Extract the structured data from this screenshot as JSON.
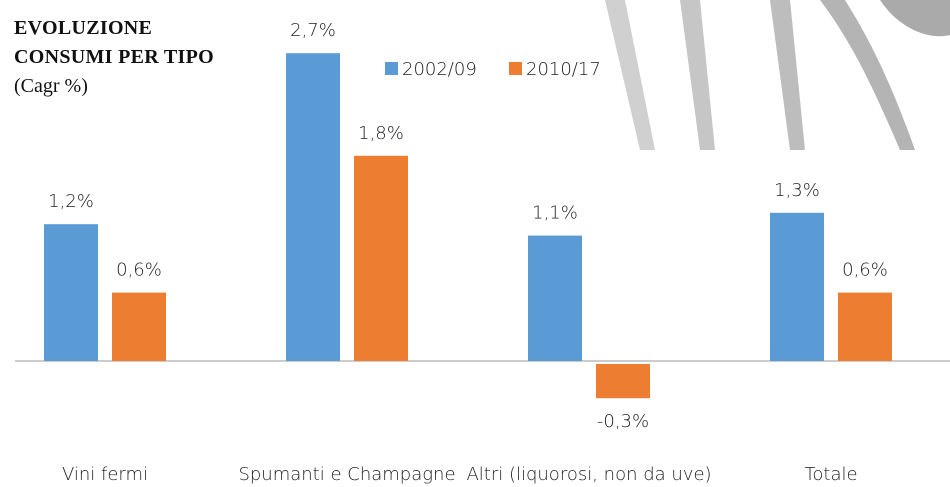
{
  "chart_data": {
    "type": "bar",
    "title": "EVOLUZIONE CONSUMI PER TIPO",
    "subtitle": "(Cagr %)",
    "categories": [
      "Vini fermi",
      "Spumanti e Champagne",
      "Altri (liquorosi, non da uve)",
      "Totale"
    ],
    "series": [
      {
        "name": "2002/09",
        "color": "#5b9bd5",
        "values": [
          1.2,
          2.7,
          1.1,
          1.3
        ],
        "value_labels": [
          "1,2%",
          "2,7%",
          "1,1%",
          "1,3%"
        ]
      },
      {
        "name": "2010/17",
        "color": "#ed7d31",
        "values": [
          0.6,
          1.8,
          -0.3,
          0.6
        ],
        "value_labels": [
          "0,6%",
          "1,8%",
          "-0,3%",
          "0,6%"
        ]
      }
    ]
  }
}
